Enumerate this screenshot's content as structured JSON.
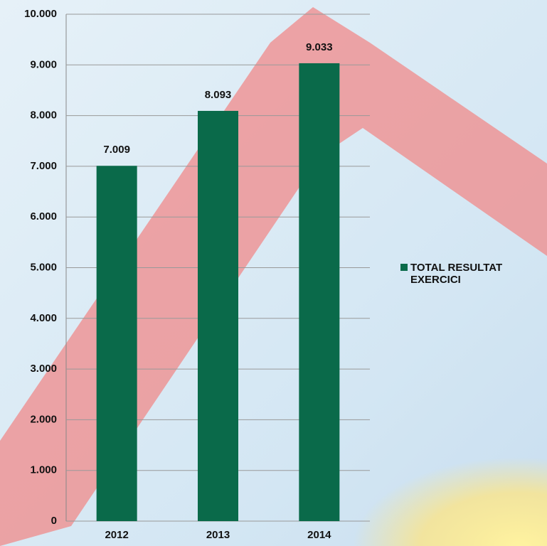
{
  "chart_data": {
    "type": "bar",
    "categories": [
      "2012",
      "2013",
      "2014"
    ],
    "series": [
      {
        "name": "TOTAL RESULTAT EXERCICI",
        "color": "#0a6a4a",
        "values": [
          7009,
          8093,
          9033
        ],
        "value_labels": [
          "7.009",
          "8.093",
          "9.033"
        ]
      }
    ],
    "ylim": [
      0,
      10000
    ],
    "yticks": [
      0,
      {
        "value": 1000,
        "label": "1.000"
      },
      {
        "value": 2000,
        "label": "2.000"
      },
      {
        "value": 3000,
        "label": "3.000"
      },
      {
        "value": 4000,
        "label": "4.000"
      },
      {
        "value": 5000,
        "label": "5.000"
      },
      {
        "value": 6000,
        "label": "6.000"
      },
      {
        "value": 7000,
        "label": "7.000"
      },
      {
        "value": 8000,
        "label": "8.000"
      },
      {
        "value": 9000,
        "label": "9.000"
      },
      {
        "value": 10000,
        "label": "10.000"
      }
    ],
    "grid": true,
    "legend": "right"
  }
}
